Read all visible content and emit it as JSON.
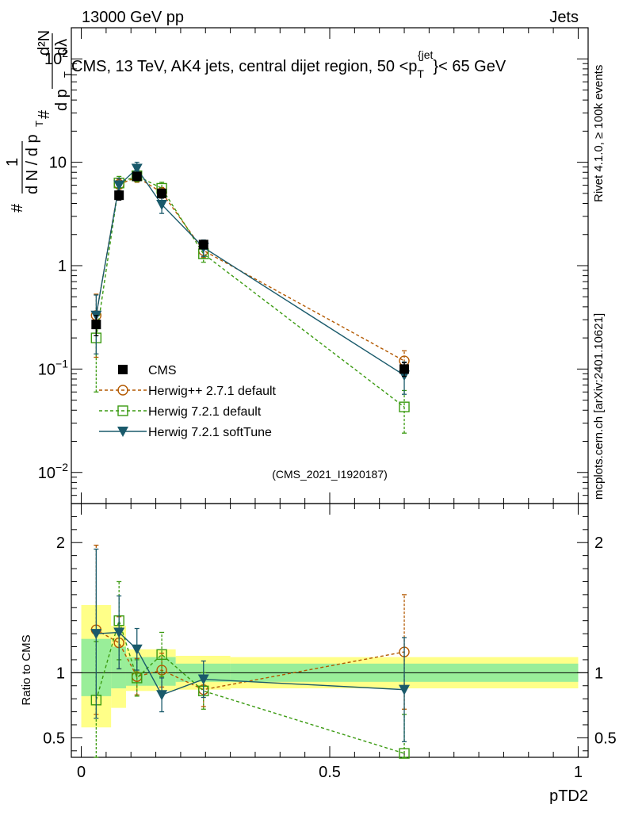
{
  "header": {
    "energy_label": "13000 GeV pp",
    "category_label": "Jets"
  },
  "side_labels": {
    "rivet": "Rivet 4.1.0, ≥ 100k events",
    "mcplots": "mcplots.cern.ch [arXiv:2401.10621]"
  },
  "chart_data": {
    "type": "line",
    "title": "CMS, 13 TeV, AK4 jets, central dijet region, 50 <p_T^{jet}< 65 GeV",
    "title_parts": {
      "main": "CMS, 13 TeV, AK4 jets, central dijet region, 50 <p",
      "sub": "T",
      "sup": "{jet",
      "tail": "}< 65 GeV"
    },
    "watermark": "(CMS_2021_I1920187)",
    "xlabel": "pTD2",
    "ylabel": "1/N dN/dpT d2N/dpT dλ",
    "ylabel_parts": {
      "hash": "#",
      "one": "1",
      "dn": "d N / d p",
      "t": "T",
      "d2n": "d²N",
      "dpt": "d p",
      "dl": "dλ"
    },
    "ratio_ylabel": "Ratio to CMS",
    "xlim": [
      -0.02,
      1.02
    ],
    "ylim_main": [
      0.005,
      200
    ],
    "ylim_ratio": [
      0.35,
      2.3
    ],
    "main_ticks": [
      {
        "value": 0.01,
        "label": "10",
        "exp": "−2"
      },
      {
        "value": 0.1,
        "label": "10",
        "exp": "−1"
      },
      {
        "value": 1,
        "label": "1",
        "exp": ""
      },
      {
        "value": 10,
        "label": "10",
        "exp": ""
      },
      {
        "value": 100,
        "label": "10",
        "exp": "2"
      }
    ],
    "ratio_ticks": [
      {
        "value": 0.5,
        "label": "0.5"
      },
      {
        "value": 1,
        "label": "1"
      },
      {
        "value": 2,
        "label": "2"
      }
    ],
    "x_ticks": [
      {
        "value": 0,
        "label": "0"
      },
      {
        "value": 0.5,
        "label": "0.5"
      },
      {
        "value": 1,
        "label": "1"
      }
    ],
    "bin_edges": [
      0,
      0.06,
      0.09,
      0.13,
      0.19,
      0.3,
      1.0
    ],
    "data_band_inner": [
      [
        0.82,
        1.26
      ],
      [
        0.88,
        1.2
      ],
      [
        0.9,
        1.12
      ],
      [
        0.9,
        1.12
      ],
      [
        0.93,
        1.07
      ],
      [
        0.93,
        1.07
      ]
    ],
    "data_band_outer": [
      [
        0.58,
        1.52
      ],
      [
        0.73,
        1.36
      ],
      [
        0.86,
        1.18
      ],
      [
        0.86,
        1.18
      ],
      [
        0.87,
        1.13
      ],
      [
        0.88,
        1.12
      ]
    ],
    "x": [
      0.03,
      0.076,
      0.112,
      0.162,
      0.246,
      0.65
    ],
    "series": [
      {
        "name": "CMS",
        "style": "data",
        "marker": "square-filled",
        "color": "#000000",
        "values": [
          0.27,
          4.8,
          7.3,
          5.0,
          1.6,
          0.1
        ],
        "err": [
          0.06,
          0.5,
          0.6,
          0.5,
          0.15,
          0.015
        ]
      },
      {
        "name": "Herwig++ 2.7.1 default",
        "style": "dashed",
        "marker": "circle-open",
        "color": "#b35900",
        "values": [
          0.33,
          6.1,
          7.2,
          5.1,
          1.4,
          0.12
        ],
        "err": [
          0.2,
          0.8,
          0.8,
          0.6,
          0.2,
          0.03
        ],
        "ratio": [
          1.33,
          1.23,
          0.97,
          1.02,
          0.87,
          1.16
        ],
        "ratio_err": [
          0.65,
          0.2,
          0.14,
          0.13,
          0.13,
          0.44
        ]
      },
      {
        "name": "Herwig 7.2.1 default",
        "style": "dashed",
        "marker": "square-open",
        "color": "#3a9a10",
        "values": [
          0.2,
          6.3,
          7.4,
          5.6,
          1.3,
          0.043
        ],
        "err": [
          0.14,
          1.0,
          0.9,
          0.8,
          0.22,
          0.019
        ],
        "ratio": [
          0.79,
          1.4,
          0.96,
          1.14,
          0.86,
          0.38
        ],
        "ratio_err": [
          0.45,
          0.3,
          0.14,
          0.17,
          0.14,
          0.3
        ]
      },
      {
        "name": "Herwig 7.2.1 softTune",
        "style": "solid",
        "marker": "triangle-down-filled",
        "color": "#1a5a6b",
        "values": [
          0.33,
          6.0,
          8.7,
          3.9,
          1.5,
          0.087
        ],
        "err": [
          0.19,
          1.0,
          1.3,
          0.7,
          0.27,
          0.03
        ],
        "ratio": [
          1.3,
          1.31,
          1.18,
          0.83,
          0.95,
          0.87
        ],
        "ratio_err": [
          0.65,
          0.28,
          0.16,
          0.13,
          0.14,
          0.4
        ]
      }
    ]
  }
}
